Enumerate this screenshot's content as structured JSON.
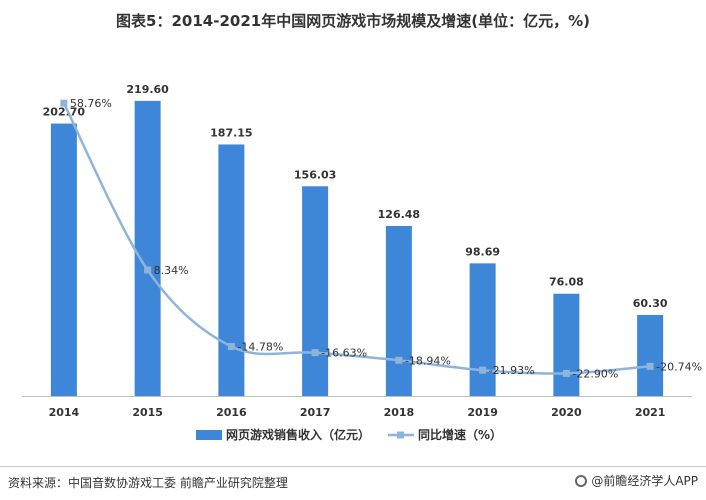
{
  "chart_data": {
    "type": "bar",
    "title": "图表5：2014-2021年中国网页游戏市场规模及增速(单位：亿元，%)",
    "categories": [
      "2014",
      "2015",
      "2016",
      "2017",
      "2018",
      "2019",
      "2020",
      "2021"
    ],
    "series": [
      {
        "name": "网页游戏销售收入（亿元）",
        "type": "bar",
        "axis": "left",
        "values": [
          202.7,
          219.6,
          187.15,
          156.03,
          126.48,
          98.69,
          76.08,
          60.3
        ],
        "labels": [
          "202.70",
          "219.60",
          "187.15",
          "156.03",
          "126.48",
          "98.69",
          "76.08",
          "60.30"
        ]
      },
      {
        "name": "同比增速（%）",
        "type": "line",
        "axis": "right",
        "values": [
          58.76,
          8.34,
          -14.78,
          -16.63,
          -18.94,
          -21.93,
          -22.9,
          -20.74
        ],
        "labels": [
          "58.76%",
          "8.34%",
          "-14.78%",
          "-16.63%",
          "-18.94%",
          "-21.93%",
          "-22.90%",
          "-20.74%"
        ]
      }
    ],
    "ylim": [
      0,
      250
    ],
    "y2lim": [
      -40,
      70
    ],
    "grid": false,
    "legend": "bottom",
    "colors": {
      "bar": "#3d86d8",
      "line": "#8fb4dc",
      "axis": "#bfbfbf"
    }
  },
  "footer": {
    "source": "资料来源：中国音数协游戏工委 前瞻产业研究院整理",
    "brand": "@前瞻经济学人APP"
  }
}
